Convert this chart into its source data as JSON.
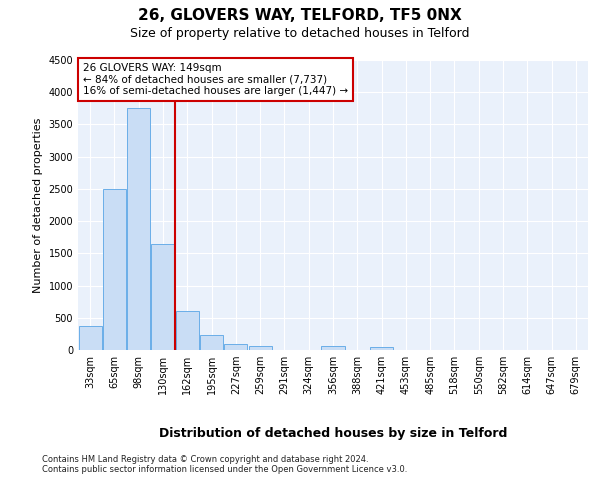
{
  "title1": "26, GLOVERS WAY, TELFORD, TF5 0NX",
  "title2": "Size of property relative to detached houses in Telford",
  "xlabel": "Distribution of detached houses by size in Telford",
  "ylabel": "Number of detached properties",
  "categories": [
    "33sqm",
    "65sqm",
    "98sqm",
    "130sqm",
    "162sqm",
    "195sqm",
    "227sqm",
    "259sqm",
    "291sqm",
    "324sqm",
    "356sqm",
    "388sqm",
    "421sqm",
    "453sqm",
    "485sqm",
    "518sqm",
    "550sqm",
    "582sqm",
    "614sqm",
    "647sqm",
    "679sqm"
  ],
  "values": [
    380,
    2500,
    3750,
    1650,
    600,
    240,
    100,
    60,
    0,
    0,
    60,
    0,
    50,
    0,
    0,
    0,
    0,
    0,
    0,
    0,
    0
  ],
  "bar_color": "#c9ddf5",
  "bar_edge_color": "#6aaee8",
  "vline_x_index": 3.5,
  "vline_color": "#cc0000",
  "ylim": [
    0,
    4500
  ],
  "yticks": [
    0,
    500,
    1000,
    1500,
    2000,
    2500,
    3000,
    3500,
    4000,
    4500
  ],
  "annotation_box_text": [
    "26 GLOVERS WAY: 149sqm",
    "← 84% of detached houses are smaller (7,737)",
    "16% of semi-detached houses are larger (1,447) →"
  ],
  "annotation_box_color": "#cc0000",
  "footer": "Contains HM Land Registry data © Crown copyright and database right 2024.\nContains public sector information licensed under the Open Government Licence v3.0.",
  "bg_color": "#eaf1fb",
  "title1_fontsize": 11,
  "title2_fontsize": 9,
  "ylabel_fontsize": 8,
  "xlabel_fontsize": 9,
  "tick_fontsize": 7,
  "ann_fontsize": 7.5,
  "footer_fontsize": 6
}
